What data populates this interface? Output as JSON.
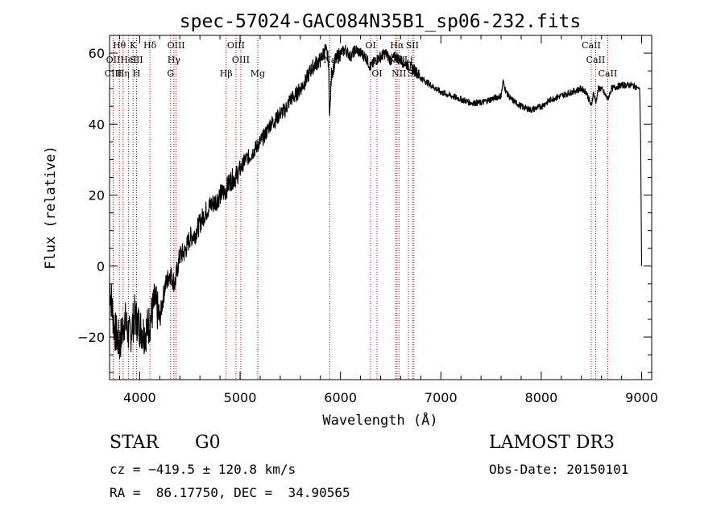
{
  "chart_data": {
    "type": "line",
    "title": "spec-57024-GAC084N35B1_sp06-232.fits",
    "xlabel": "Wavelength (Å)",
    "ylabel": "Flux (relative)",
    "xlim": [
      3700,
      9100
    ],
    "ylim": [
      -32,
      65
    ],
    "xticks": [
      4000,
      5000,
      6000,
      7000,
      8000,
      9000
    ],
    "xtick_labels": [
      "4000",
      "5000",
      "6000",
      "7000",
      "8000",
      "9000"
    ],
    "yticks": [
      -20,
      0,
      20,
      40,
      60
    ],
    "ytick_labels": [
      "−20",
      "0",
      "20",
      "40",
      "60"
    ],
    "grid": false,
    "series": [
      {
        "name": "spectrum",
        "color": "#000000",
        "x": [
          3700,
          3750,
          3800,
          3850,
          3900,
          3950,
          4000,
          4050,
          4100,
          4150,
          4200,
          4250,
          4300,
          4350,
          4400,
          4450,
          4500,
          4550,
          4600,
          4650,
          4700,
          4750,
          4800,
          4850,
          4900,
          4950,
          5000,
          5050,
          5100,
          5150,
          5200,
          5250,
          5300,
          5350,
          5400,
          5450,
          5500,
          5550,
          5600,
          5650,
          5700,
          5750,
          5800,
          5850,
          5880,
          5893,
          5910,
          5950,
          6000,
          6050,
          6100,
          6150,
          6200,
          6250,
          6300,
          6350,
          6400,
          6450,
          6500,
          6550,
          6600,
          6650,
          6700,
          6750,
          6800,
          6850,
          6900,
          6950,
          7000,
          7100,
          7200,
          7300,
          7400,
          7500,
          7600,
          7620,
          7650,
          7700,
          7800,
          7900,
          8000,
          8100,
          8200,
          8300,
          8400,
          8450,
          8498,
          8520,
          8542,
          8570,
          8600,
          8662,
          8700,
          8800,
          8900,
          8980,
          8990,
          9000
        ],
        "y": [
          -5,
          -18,
          -22,
          -15,
          -20,
          -14,
          -17,
          -19,
          -16,
          -10,
          -15,
          -6,
          -2,
          -5,
          3,
          4,
          8,
          9,
          12,
          15,
          17,
          18,
          20,
          21,
          24,
          25,
          27,
          30,
          31,
          33,
          35,
          37,
          40,
          41,
          43,
          44,
          47,
          48,
          50,
          52,
          55,
          57,
          58,
          61,
          58,
          42,
          54,
          58,
          60,
          61,
          59,
          61,
          60,
          59,
          56,
          58,
          59,
          60,
          58,
          59,
          58,
          57,
          56,
          55,
          53,
          52,
          51,
          50,
          49,
          48,
          47,
          46,
          46,
          47,
          48,
          52,
          49,
          47,
          45,
          44,
          45,
          47,
          48,
          49,
          50,
          49,
          45,
          49,
          46,
          50,
          50,
          47,
          50,
          51,
          51,
          50,
          35,
          0
        ]
      }
    ],
    "lines": [
      {
        "x": 3736,
        "labels": [
          {
            "row": 1,
            "text": "OII"
          },
          {
            "row": 2,
            "text": "CIII"
          }
        ]
      },
      {
        "x": 3798,
        "labels": [
          {
            "row": 0,
            "text": "Hθ"
          }
        ]
      },
      {
        "x": 3835,
        "labels": [
          {
            "row": 2,
            "text": "Hη"
          }
        ]
      },
      {
        "x": 3889,
        "labels": [
          {
            "row": 1,
            "text": "HeI"
          }
        ]
      },
      {
        "x": 3934,
        "labels": [
          {
            "row": 0,
            "text": "K"
          }
        ]
      },
      {
        "x": 3969,
        "labels": [
          {
            "row": 1,
            "text": "SII"
          },
          {
            "row": 2,
            "text": "H"
          }
        ]
      },
      {
        "x": 4102,
        "labels": [
          {
            "row": 0,
            "text": "Hδ"
          }
        ]
      },
      {
        "x": 4308,
        "labels": [
          {
            "row": 2,
            "text": "G"
          }
        ]
      },
      {
        "x": 4341,
        "labels": [
          {
            "row": 1,
            "text": "Hγ"
          }
        ]
      },
      {
        "x": 4363,
        "labels": [
          {
            "row": 0,
            "text": "OIII"
          }
        ]
      },
      {
        "x": 4861,
        "labels": [
          {
            "row": 2,
            "text": "Hβ"
          }
        ]
      },
      {
        "x": 4959,
        "labels": [
          {
            "row": 0,
            "text": "OIII"
          }
        ]
      },
      {
        "x": 5007,
        "labels": [
          {
            "row": 1,
            "text": "OIII"
          }
        ]
      },
      {
        "x": 5176,
        "labels": [
          {
            "row": 2,
            "text": "Mg"
          }
        ]
      },
      {
        "x": 5893,
        "labels": [
          {
            "row": 1,
            "text": "Na"
          }
        ]
      },
      {
        "x": 6300,
        "labels": [
          {
            "row": 0,
            "text": "OI"
          }
        ]
      },
      {
        "x": 6364,
        "labels": [
          {
            "row": 2,
            "text": "OI"
          }
        ]
      },
      {
        "x": 6548,
        "labels": [
          {
            "row": 1,
            "text": "NII"
          }
        ]
      },
      {
        "x": 6563,
        "labels": [
          {
            "row": 0,
            "text": "Hα"
          }
        ]
      },
      {
        "x": 6583,
        "labels": [
          {
            "row": 2,
            "text": "NII"
          }
        ]
      },
      {
        "x": 6678,
        "labels": [
          {
            "row": 1,
            "text": "Li"
          }
        ]
      },
      {
        "x": 6716,
        "labels": [
          {
            "row": 0,
            "text": "SII"
          }
        ]
      },
      {
        "x": 6731,
        "labels": [
          {
            "row": 2,
            "text": "SII"
          }
        ]
      },
      {
        "x": 8498,
        "labels": [
          {
            "row": 0,
            "text": "CaII"
          }
        ]
      },
      {
        "x": 8542,
        "labels": [
          {
            "row": 1,
            "text": "CaII"
          }
        ]
      },
      {
        "x": 8662,
        "labels": [
          {
            "row": 2,
            "text": "CaII"
          }
        ]
      }
    ],
    "line_color": "#b00000"
  },
  "info": {
    "class": "STAR",
    "subclass": "G0",
    "survey": "LAMOST DR3",
    "cz": "cz = −419.5 ± 120.8 km/s",
    "obs_date": "Obs-Date: 20150101",
    "radec": "RA =  86.17750, DEC =  34.90565"
  }
}
